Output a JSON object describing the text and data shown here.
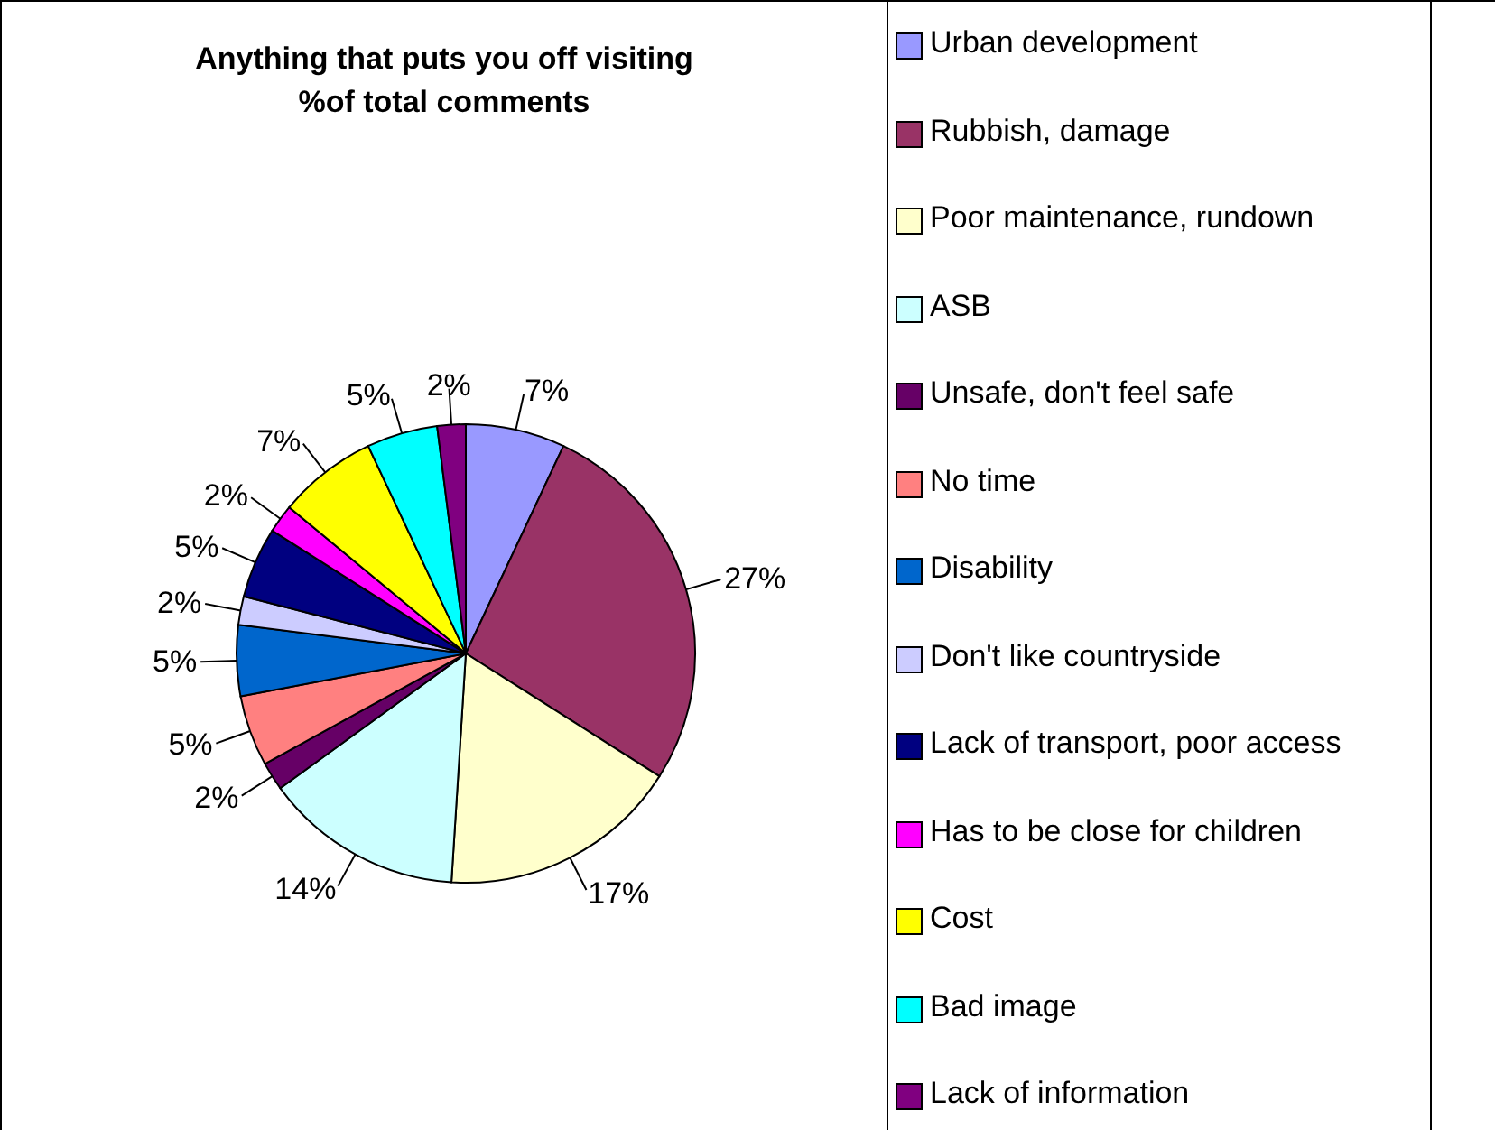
{
  "chart_data": {
    "type": "pie",
    "title": "Anything that puts you off visiting\n%of total comments",
    "categories": [
      "Urban development",
      "Rubbish, damage",
      "Poor maintenance, rundown",
      "ASB",
      "Unsafe, don't feel safe",
      "No time",
      "Disability",
      "Don't like countryside",
      "Lack of transport, poor access",
      "Has to be close for children",
      "Cost",
      "Bad image",
      "Lack of information"
    ],
    "values": [
      7,
      27,
      17,
      14,
      2,
      5,
      5,
      2,
      5,
      2,
      7,
      5,
      2
    ],
    "colors": [
      "#9999ff",
      "#993366",
      "#ffffcc",
      "#ccffff",
      "#660066",
      "#ff8080",
      "#0066cc",
      "#ccccff",
      "#000080",
      "#ff00ff",
      "#ffff00",
      "#00ffff",
      "#800080"
    ],
    "value_labels": [
      "7%",
      "27%",
      "17%",
      "14%",
      "2%",
      "5%",
      "5%",
      "2%",
      "5%",
      "2%",
      "7%",
      "5%",
      "2%"
    ],
    "legend": "right"
  }
}
